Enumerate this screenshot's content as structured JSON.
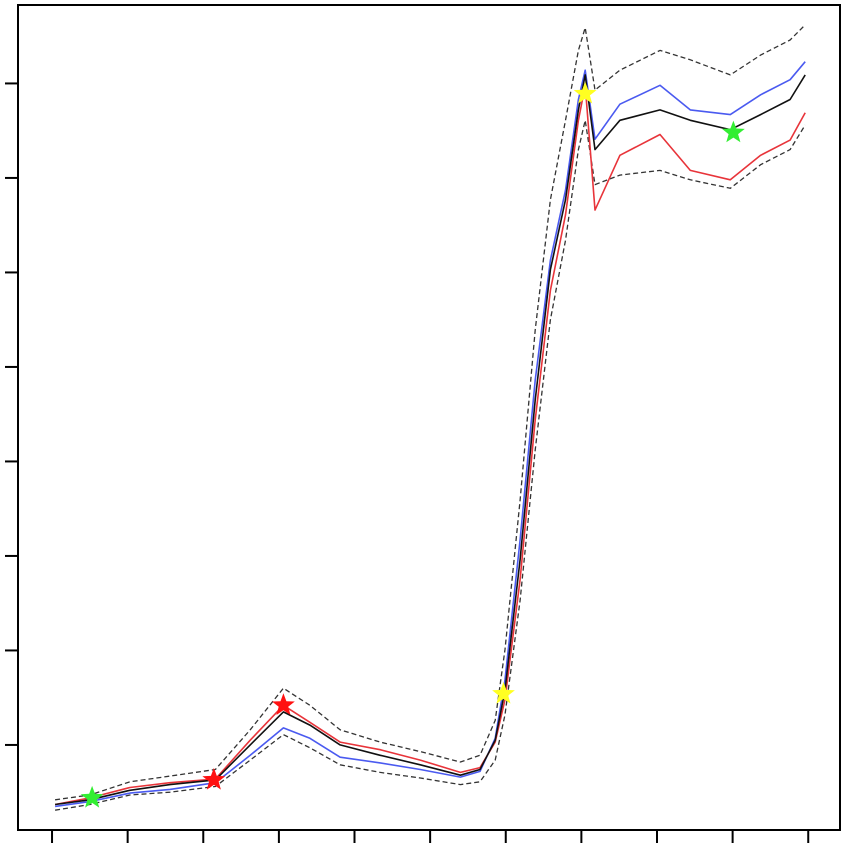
{
  "chart_data": {
    "type": "line",
    "x": [
      0.04,
      0.5,
      1.03,
      1.56,
      2.16,
      2.62,
      3.06,
      3.41,
      3.81,
      4.34,
      4.87,
      5.4,
      5.66,
      5.86,
      5.99,
      6.19,
      6.39,
      6.59,
      6.79,
      6.96,
      7.05,
      7.18,
      7.51,
      8.04,
      8.44,
      8.97,
      9.37,
      9.76,
      9.96
    ],
    "series": [
      {
        "color": "#333333",
        "dash": true,
        "values": [
          0.42,
          0.47,
          0.61,
          0.67,
          0.74,
          1.16,
          1.6,
          1.42,
          1.16,
          1.03,
          0.93,
          0.82,
          0.89,
          1.26,
          2.01,
          3.59,
          5.39,
          6.77,
          7.61,
          8.35,
          8.59,
          7.93,
          8.14,
          8.35,
          8.25,
          8.09,
          8.3,
          8.46,
          8.62
        ]
      },
      {
        "color": "#333333",
        "dash": true,
        "values": [
          0.31,
          0.37,
          0.47,
          0.5,
          0.56,
          0.84,
          1.11,
          0.97,
          0.79,
          0.71,
          0.65,
          0.58,
          0.61,
          0.84,
          1.32,
          2.53,
          4.12,
          5.5,
          6.34,
          7.3,
          7.61,
          6.93,
          7.03,
          7.08,
          6.98,
          6.89,
          7.14,
          7.3,
          7.56
        ]
      },
      {
        "color": "#4a5af0",
        "dash": false,
        "values": [
          0.35,
          0.4,
          0.49,
          0.53,
          0.6,
          0.89,
          1.18,
          1.07,
          0.87,
          0.81,
          0.74,
          0.66,
          0.72,
          1.07,
          1.69,
          3.17,
          4.86,
          6.13,
          6.87,
          7.83,
          8.14,
          7.41,
          7.78,
          7.98,
          7.72,
          7.67,
          7.88,
          8.04,
          8.23
        ]
      },
      {
        "color": "#e8343a",
        "dash": false,
        "values": [
          0.37,
          0.44,
          0.55,
          0.6,
          0.64,
          1.05,
          1.42,
          1.24,
          1.03,
          0.95,
          0.84,
          0.71,
          0.76,
          1.03,
          1.48,
          2.75,
          4.44,
          5.81,
          6.61,
          7.61,
          7.98,
          6.66,
          7.24,
          7.46,
          7.08,
          6.98,
          7.24,
          7.4,
          7.69
        ]
      },
      {
        "color": "#111111",
        "dash": false,
        "values": [
          0.37,
          0.42,
          0.52,
          0.58,
          0.63,
          1.0,
          1.35,
          1.21,
          1.0,
          0.89,
          0.79,
          0.68,
          0.74,
          1.05,
          1.58,
          2.96,
          4.65,
          6.03,
          6.77,
          7.72,
          8.09,
          7.3,
          7.61,
          7.72,
          7.61,
          7.51,
          7.67,
          7.83,
          8.09
        ]
      }
    ],
    "markers": [
      {
        "color": "#33ee33",
        "x": [
          0.53,
          9.01
        ],
        "values": [
          0.44,
          7.48
        ]
      },
      {
        "color": "#ff1111",
        "x": [
          2.14,
          3.06
        ],
        "values": [
          0.63,
          1.42
        ]
      },
      {
        "color": "#ffff22",
        "x": [
          5.97,
          7.05
        ],
        "values": [
          1.54,
          7.89
        ]
      }
    ],
    "xlim": [
      -0.45,
      10.42
    ],
    "ylim": [
      0.1,
      8.83
    ],
    "xticks": [
      0,
      1,
      2,
      3,
      4,
      5,
      6,
      7,
      8,
      9,
      10
    ],
    "yticks": [
      1,
      2,
      3,
      4,
      5,
      6,
      7,
      8
    ]
  }
}
